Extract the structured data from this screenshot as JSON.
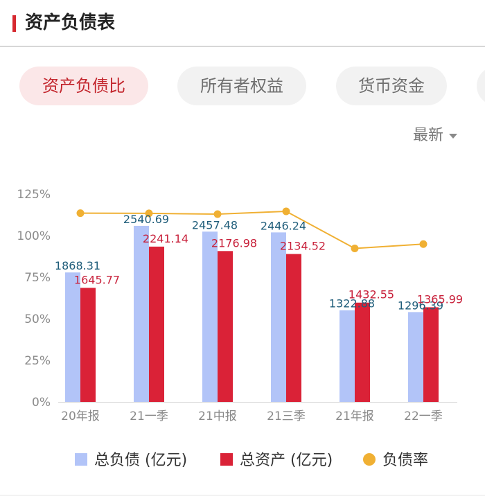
{
  "header": {
    "title": "资产负债表",
    "accent_color": "#d6282f"
  },
  "tabs": [
    {
      "label": "资产负债比",
      "active": true
    },
    {
      "label": "所有者权益",
      "active": false
    },
    {
      "label": "货币资金",
      "active": false
    }
  ],
  "sort": {
    "label": "最新"
  },
  "legend": {
    "liabilities": "总负债 (亿元)",
    "assets": "总资产 (亿元)",
    "ratio": "负债率"
  },
  "chart_data": {
    "type": "bar",
    "categories": [
      "20年报",
      "21一季",
      "21中报",
      "21三季",
      "21年报",
      "22一季"
    ],
    "series": [
      {
        "name": "总负债 (亿元)",
        "type": "bar",
        "color": "#b2c4f8",
        "values": [
          1868.31,
          2540.69,
          2457.48,
          2446.24,
          1322.88,
          1296.39
        ]
      },
      {
        "name": "总资产 (亿元)",
        "type": "bar",
        "color": "#da2237",
        "values": [
          1645.77,
          2241.14,
          2176.98,
          2134.52,
          1432.55,
          1365.99
        ]
      },
      {
        "name": "负债率",
        "type": "line",
        "color": "#f0b033",
        "values": [
          113.5,
          113.4,
          112.9,
          114.6,
          92.3,
          94.9
        ]
      }
    ],
    "left_axis": {
      "ticks": [
        "0%",
        "25%",
        "50%",
        "75%",
        "100%",
        "125%"
      ],
      "range": [
        0,
        125
      ]
    },
    "bar_scale_max": 3000,
    "grid": false,
    "legend_position": "bottom"
  }
}
